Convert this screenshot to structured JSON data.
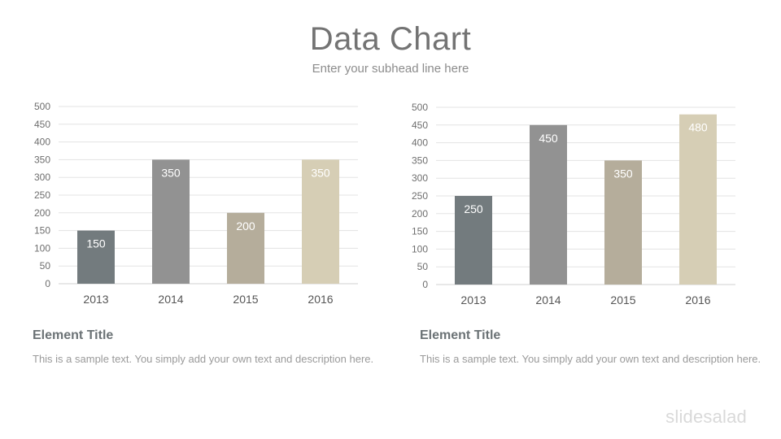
{
  "header": {
    "title": "Data Chart",
    "subtitle": "Enter your subhead line here"
  },
  "chart_data": [
    {
      "type": "bar",
      "categories": [
        "2013",
        "2014",
        "2015",
        "2016"
      ],
      "values": [
        150,
        350,
        200,
        350
      ],
      "colors": [
        "#737b7e",
        "#929292",
        "#b5ad9b",
        "#d6ceb5"
      ],
      "ylim": [
        0,
        500
      ],
      "yticks": [
        0,
        50,
        100,
        150,
        200,
        250,
        300,
        350,
        400,
        450,
        500
      ],
      "grid": true,
      "data_labels": true
    },
    {
      "type": "bar",
      "categories": [
        "2013",
        "2014",
        "2015",
        "2016"
      ],
      "values": [
        250,
        450,
        350,
        480
      ],
      "colors": [
        "#737b7e",
        "#929292",
        "#b5ad9b",
        "#d6ceb5"
      ],
      "ylim": [
        0,
        500
      ],
      "yticks": [
        0,
        50,
        100,
        150,
        200,
        250,
        300,
        350,
        400,
        450,
        500
      ],
      "grid": true,
      "data_labels": true
    }
  ],
  "blocks": [
    {
      "title": "Element Title",
      "text": "This is a sample text. You simply add your own text and description here."
    },
    {
      "title": "Element Title",
      "text": "This is a sample text. You simply add your own text and description here."
    }
  ],
  "footer": {
    "logo": "slidesalad"
  }
}
